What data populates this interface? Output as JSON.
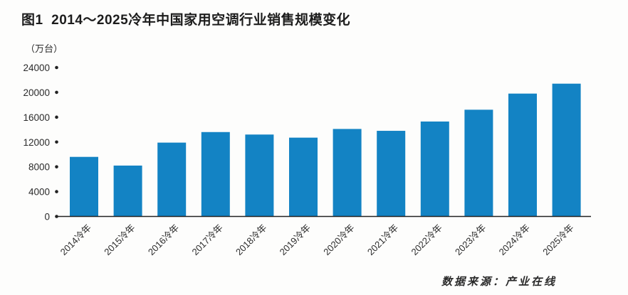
{
  "figure": {
    "title": "图1  2014～2025冷年中国家用空调行业销售规模变化",
    "unit_label": "（万台）",
    "source": "数据来源：产业在线"
  },
  "chart_data": {
    "type": "bar",
    "title": "图1  2014～2025冷年中国家用空调行业销售规模变化",
    "ylabel_unit": "（万台）",
    "categories": [
      "2014冷年",
      "2015冷年",
      "2016冷年",
      "2017冷年",
      "2018冷年",
      "2019冷年",
      "2020冷年",
      "2021冷年",
      "2022冷年",
      "2023冷年",
      "2024冷年",
      "2025冷年"
    ],
    "values": [
      9600,
      8200,
      11900,
      13600,
      13200,
      12700,
      14100,
      13800,
      15300,
      17200,
      19800,
      21400
    ],
    "y_ticks": [
      0,
      4000,
      8000,
      12000,
      16000,
      20000,
      24000
    ],
    "ylim": [
      0,
      24000
    ],
    "grid": false,
    "legend": false,
    "x_labels_rotation_deg": -45,
    "bar_color": "#1383c4",
    "axis_color": "#222222",
    "tick_dot_color": "#222222",
    "source": "数据来源：产业在线"
  }
}
